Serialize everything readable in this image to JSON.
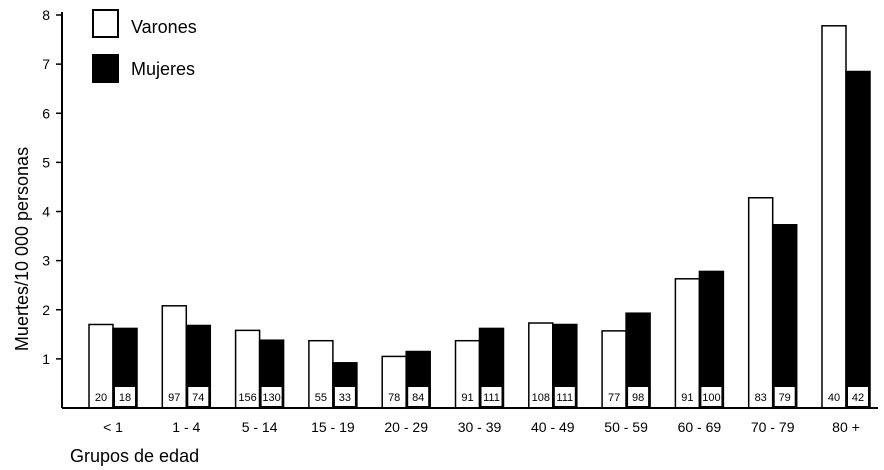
{
  "chart_data": {
    "type": "bar",
    "ylabel": "Muertes/10 000 personas",
    "xlabel": "Grupos de edad",
    "ylim": [
      0,
      8
    ],
    "yticks": [
      1,
      2,
      3,
      4,
      5,
      6,
      7,
      8
    ],
    "categories": [
      "< 1",
      "1 - 4",
      "5 - 14",
      "15 - 19",
      "20 - 29",
      "30 - 39",
      "40 - 49",
      "50 - 59",
      "60 - 69",
      "70 - 79",
      "80 +"
    ],
    "series": [
      {
        "name": "Varones",
        "color": "#ffffff",
        "values": [
          1.7,
          2.08,
          1.58,
          1.37,
          1.05,
          1.37,
          1.73,
          1.57,
          2.63,
          4.28,
          7.78
        ],
        "counts": [
          "20",
          "97",
          "156",
          "55",
          "78",
          "91",
          "108",
          "77",
          "91",
          "83",
          "40"
        ]
      },
      {
        "name": "Mujeres",
        "color": "#000000",
        "values": [
          1.62,
          1.68,
          1.38,
          0.92,
          1.15,
          1.62,
          1.7,
          1.93,
          2.78,
          3.73,
          6.85
        ],
        "counts": [
          "18",
          "74",
          "130",
          "33",
          "84",
          "111",
          "111",
          "98",
          "100",
          "79",
          "42"
        ]
      }
    ],
    "legend_position": "top-left",
    "grid": false
  }
}
